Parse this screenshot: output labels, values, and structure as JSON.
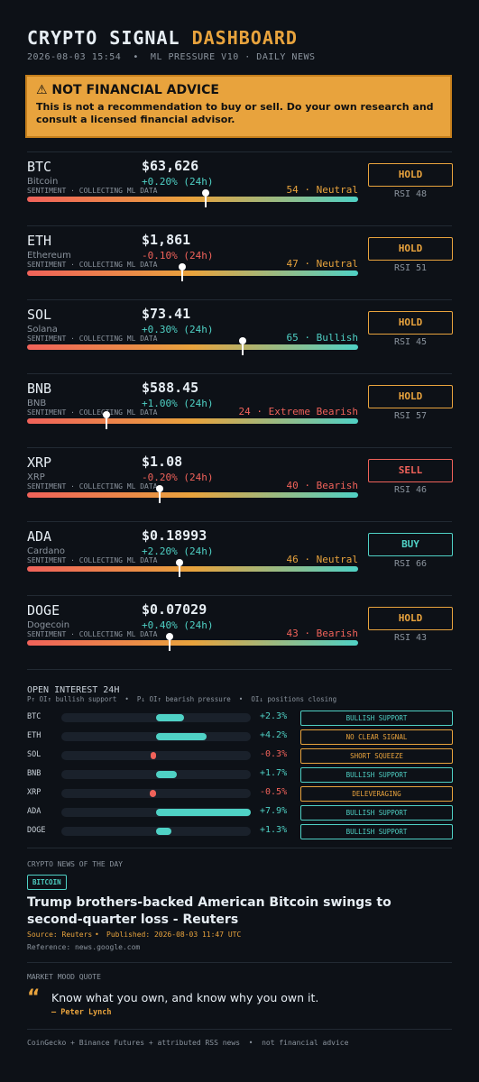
{
  "header": {
    "title": "CRYPTO SIGNAL",
    "title_accent": "DASHBOARD",
    "subtitle": "2026-08-03 15:54  •  ML PRESSURE V10 · DAILY NEWS"
  },
  "warning": {
    "title": "⚠ NOT FINANCIAL ADVICE",
    "text": "This is not a recommendation to buy or sell. Do your own research and consult a licensed financial advisor."
  },
  "sentiment_range": [
    0,
    100
  ],
  "coins": [
    {
      "symbol": "BTC",
      "name": "Bitcoin",
      "price": "$63,626",
      "change": "+0.20% (24h)",
      "caption": "SENTIMENT · COLLECTING ML DATA",
      "sentiment": {
        "value": 54,
        "label": "54 · Neutral"
      },
      "sentiment_color": "#e8a33d",
      "signal": "HOLD",
      "signal_color": "#e8a33d",
      "rsi": "RSI 48"
    },
    {
      "symbol": "ETH",
      "name": "Ethereum",
      "price": "$1,861",
      "change": "-0.10% (24h)",
      "caption": "SENTIMENT · COLLECTING ML DATA",
      "sentiment": {
        "value": 47,
        "label": "47 · Neutral"
      },
      "sentiment_color": "#e8a33d",
      "signal": "HOLD",
      "signal_color": "#e8a33d",
      "rsi": "RSI 51"
    },
    {
      "symbol": "SOL",
      "name": "Solana",
      "price": "$73.41",
      "change": "+0.30% (24h)",
      "caption": "SENTIMENT · COLLECTING ML DATA",
      "sentiment": {
        "value": 65,
        "label": "65 · Bullish"
      },
      "sentiment_color": "#4fd1c5",
      "signal": "HOLD",
      "signal_color": "#e8a33d",
      "rsi": "RSI 45"
    },
    {
      "symbol": "BNB",
      "name": "BNB",
      "price": "$588.45",
      "change": "+1.00% (24h)",
      "caption": "SENTIMENT · COLLECTING ML DATA",
      "sentiment": {
        "value": 24,
        "label": "24 · Extreme Bearish"
      },
      "sentiment_color": "#f0625a",
      "signal": "HOLD",
      "signal_color": "#e8a33d",
      "rsi": "RSI 57"
    },
    {
      "symbol": "XRP",
      "name": "XRP",
      "price": "$1.08",
      "change": "-0.20% (24h)",
      "caption": "SENTIMENT · COLLECTING ML DATA",
      "sentiment": {
        "value": 40,
        "label": "40 · Bearish"
      },
      "sentiment_color": "#f0625a",
      "signal": "SELL",
      "signal_color": "#f0625a",
      "rsi": "RSI 46"
    },
    {
      "symbol": "ADA",
      "name": "Cardano",
      "price": "$0.18993",
      "change": "+2.20% (24h)",
      "caption": "SENTIMENT · COLLECTING ML DATA",
      "sentiment": {
        "value": 46,
        "label": "46 · Neutral"
      },
      "sentiment_color": "#e8a33d",
      "signal": "BUY",
      "signal_color": "#4fd1c5",
      "rsi": "RSI 66"
    },
    {
      "symbol": "DOGE",
      "name": "Dogecoin",
      "price": "$0.07029",
      "change": "+0.40% (24h)",
      "caption": "SENTIMENT · COLLECTING ML DATA",
      "sentiment": {
        "value": 43,
        "label": "43 · Bearish"
      },
      "sentiment_color": "#f0625a",
      "signal": "HOLD",
      "signal_color": "#e8a33d",
      "rsi": "RSI 43"
    }
  ],
  "open_interest": {
    "title": "OPEN INTEREST 24H",
    "legend": "P↑ OI↑ bullish support  •  P↓ OI↑ bearish pressure  •  OI↓ positions closing",
    "rows": [
      {
        "symbol": "BTC",
        "change": {
          "value": 2.3,
          "label": "+2.3%"
        },
        "status": "BULLISH SUPPORT",
        "status_color": "#4fd1c5"
      },
      {
        "symbol": "ETH",
        "change": {
          "value": 4.2,
          "label": "+4.2%"
        },
        "status": "NO CLEAR SIGNAL",
        "status_color": "#e8a33d"
      },
      {
        "symbol": "SOL",
        "change": {
          "value": -0.3,
          "label": "-0.3%"
        },
        "status": "SHORT SQUEEZE",
        "status_color": "#e8a33d"
      },
      {
        "symbol": "BNB",
        "change": {
          "value": 1.7,
          "label": "+1.7%"
        },
        "status": "BULLISH SUPPORT",
        "status_color": "#4fd1c5"
      },
      {
        "symbol": "XRP",
        "change": {
          "value": -0.5,
          "label": "-0.5%"
        },
        "status": "DELEVERAGING",
        "status_color": "#e8a33d"
      },
      {
        "symbol": "ADA",
        "change": {
          "value": 7.9,
          "label": "+7.9%"
        },
        "status": "BULLISH SUPPORT",
        "status_color": "#4fd1c5"
      },
      {
        "symbol": "DOGE",
        "change": {
          "value": 1.3,
          "label": "+1.3%"
        },
        "status": "BULLISH SUPPORT",
        "status_color": "#4fd1c5"
      }
    ]
  },
  "news": {
    "section": "CRYPTO NEWS OF THE DAY",
    "tag": "BITCOIN",
    "headline": "Trump brothers-backed American Bitcoin swings to second-quarter loss - Reuters",
    "source": "Source: Reuters",
    "published": "Published: 2026-08-03 11:47 UTC",
    "reference": "Reference: news.google.com"
  },
  "quote": {
    "section": "MARKET MOOD QUOTE",
    "mark": "“",
    "text": "Know what you own, and know why you own it.",
    "author": "— Peter Lynch"
  },
  "footer": "CoinGecko + Binance Futures + attributed RSS news  •  not financial advice"
}
